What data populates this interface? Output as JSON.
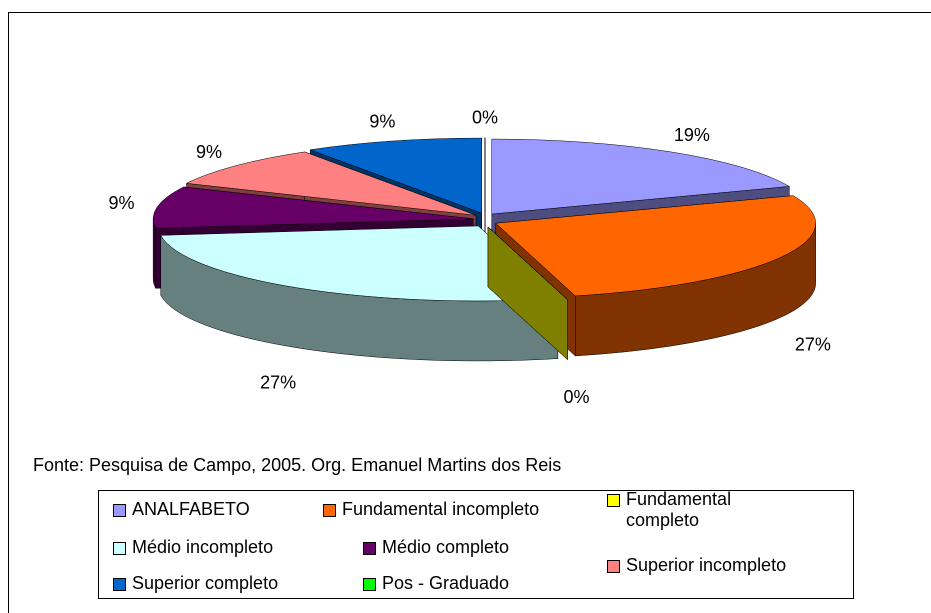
{
  "chart_data": {
    "type": "pie",
    "categories": [
      "ANALFABETO",
      "Fundamental incompleto",
      "Fundamental completo",
      "Médio incompleto",
      "Médio completo",
      "Superior incompleto",
      "Superior completo",
      "Pos - Graduado"
    ],
    "values": [
      19,
      27,
      0,
      27,
      9,
      9,
      9,
      0
    ],
    "value_labels": [
      "19%",
      "27%",
      "0%",
      "27%",
      "9%",
      "9%",
      "9%",
      "0%"
    ],
    "colors": [
      "#9999ff",
      "#ff6600",
      "#ffff00",
      "#ccffff",
      "#660066",
      "#ff8080",
      "#0066cc",
      "#00ff00"
    ],
    "source": "Fonte: Pesquisa de Campo, 2005. Org. Emanuel Martins dos Reis"
  }
}
